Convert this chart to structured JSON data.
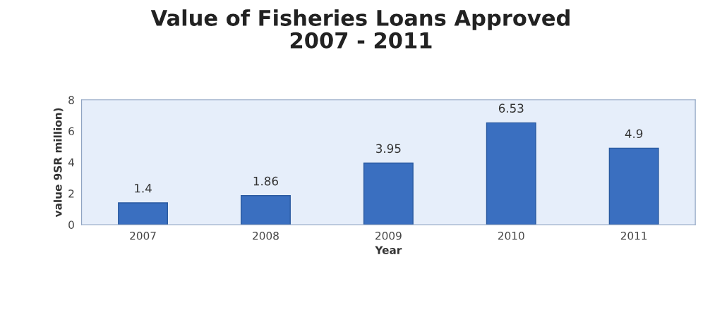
{
  "chart_data": {
    "type": "bar",
    "title": "Value of Fisheries Loans Approved\n2007 - 2011",
    "xlabel": "Year",
    "ylabel": "value 9SR million)",
    "categories": [
      "2007",
      "2008",
      "2009",
      "2010",
      "2011"
    ],
    "values": [
      1.4,
      1.86,
      3.95,
      6.53,
      4.9
    ],
    "color": "#3a6fc0",
    "ylim": [
      0,
      8
    ],
    "yticks": [
      0,
      2,
      4,
      6,
      8
    ],
    "data_labels": true
  }
}
